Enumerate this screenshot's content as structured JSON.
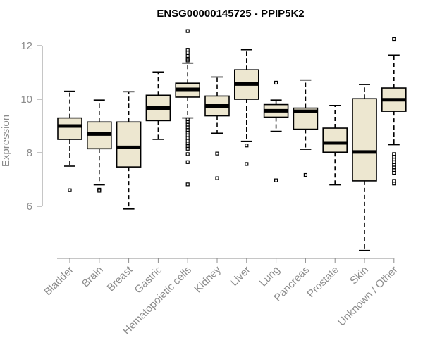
{
  "chart_data": {
    "type": "boxplot",
    "title": "ENSG00000145725 - PPIP5K2",
    "xlabel": "",
    "ylabel": "Expression",
    "ylim": [
      4.1,
      12.7
    ],
    "yticks": [
      6,
      8,
      10,
      12
    ],
    "box_color": "#ede7d0",
    "categories": [
      "Bladder",
      "Brain",
      "Breast",
      "Gastric",
      "Hematopoietic cells",
      "Kidney",
      "Liver",
      "Lung",
      "Pancreas",
      "Prostate",
      "Skin",
      "Unknown / Other"
    ],
    "boxes": [
      {
        "category": "Bladder",
        "whisker_low": 7.5,
        "q1": 8.5,
        "median": 9.0,
        "q3": 9.3,
        "whisker_high": 10.3,
        "outliers": [
          6.6
        ]
      },
      {
        "category": "Brain",
        "whisker_low": 6.8,
        "q1": 8.15,
        "median": 8.7,
        "q3": 9.15,
        "whisker_high": 9.97,
        "outliers": [
          6.58,
          6.62
        ]
      },
      {
        "category": "Breast",
        "whisker_low": 5.9,
        "q1": 7.47,
        "median": 8.2,
        "q3": 9.15,
        "whisker_high": 10.28,
        "outliers": []
      },
      {
        "category": "Gastric",
        "whisker_low": 8.5,
        "q1": 9.2,
        "median": 9.67,
        "q3": 10.15,
        "whisker_high": 11.02,
        "outliers": []
      },
      {
        "category": "Hematopoietic cells",
        "whisker_low": 9.3,
        "q1": 10.08,
        "median": 10.37,
        "q3": 10.6,
        "whisker_high": 11.35,
        "outliers": [
          12.55,
          11.85,
          11.75,
          11.62,
          11.5,
          11.45,
          9.25,
          9.15,
          9.05,
          8.95,
          8.85,
          8.75,
          8.65,
          8.55,
          8.45,
          8.35,
          8.25,
          8.15,
          7.95,
          7.65,
          6.82
        ]
      },
      {
        "category": "Kidney",
        "whisker_low": 8.73,
        "q1": 9.38,
        "median": 9.75,
        "q3": 10.12,
        "whisker_high": 10.83,
        "outliers": [
          7.97,
          7.05
        ]
      },
      {
        "category": "Liver",
        "whisker_low": 8.43,
        "q1": 10.0,
        "median": 10.57,
        "q3": 11.1,
        "whisker_high": 11.85,
        "outliers": [
          8.27,
          7.58
        ]
      },
      {
        "category": "Lung",
        "whisker_low": 8.8,
        "q1": 9.33,
        "median": 9.57,
        "q3": 9.8,
        "whisker_high": 9.97,
        "outliers": [
          10.62,
          6.97
        ]
      },
      {
        "category": "Pancreas",
        "whisker_low": 8.13,
        "q1": 8.88,
        "median": 9.55,
        "q3": 9.67,
        "whisker_high": 10.72,
        "outliers": [
          7.17
        ]
      },
      {
        "category": "Prostate",
        "whisker_low": 6.8,
        "q1": 8.02,
        "median": 8.37,
        "q3": 8.92,
        "whisker_high": 9.77,
        "outliers": []
      },
      {
        "category": "Skin",
        "whisker_low": 4.35,
        "q1": 6.95,
        "median": 8.03,
        "q3": 10.02,
        "whisker_high": 10.55,
        "outliers": []
      },
      {
        "category": "Unknown / Other",
        "whisker_low": 8.3,
        "q1": 9.55,
        "median": 9.98,
        "q3": 10.42,
        "whisker_high": 11.65,
        "outliers": [
          12.25,
          7.95,
          7.85,
          7.75,
          7.65,
          7.55,
          7.45,
          7.35,
          7.25,
          6.95,
          6.85
        ]
      }
    ]
  }
}
